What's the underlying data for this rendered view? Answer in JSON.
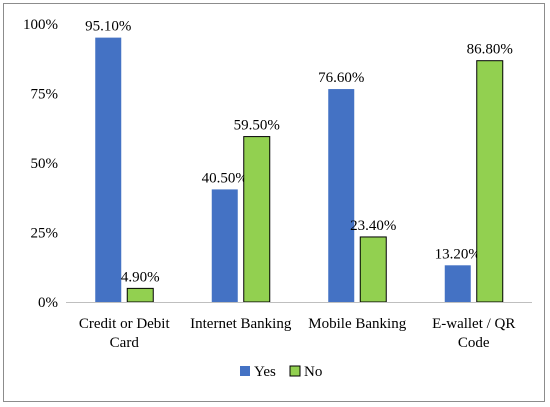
{
  "chart_data": {
    "type": "bar",
    "categories": [
      [
        "Credit or Debit",
        "Card"
      ],
      [
        "Internet Banking"
      ],
      [
        "Mobile Banking"
      ],
      [
        "E-wallet / QR",
        "Code"
      ]
    ],
    "series": [
      {
        "name": "Yes",
        "values": [
          95.1,
          40.5,
          76.6,
          13.2
        ],
        "labels": [
          "95.10%",
          "40.50%",
          "76.60%",
          "13.20%"
        ],
        "color": "#4472C4"
      },
      {
        "name": "No",
        "values": [
          4.9,
          59.5,
          23.4,
          86.8
        ],
        "labels": [
          "4.90%",
          "59.50%",
          "23.40%",
          "86.80%"
        ],
        "color": "#92D050"
      }
    ],
    "y_ticks": [
      {
        "value": 0,
        "label": "0%"
      },
      {
        "value": 25,
        "label": "25%"
      },
      {
        "value": 50,
        "label": "50%"
      },
      {
        "value": 75,
        "label": "75%"
      },
      {
        "value": 100,
        "label": "100%"
      }
    ],
    "ylim": [
      0,
      100
    ],
    "grid": false,
    "legend": "bottom-center",
    "axis_color": "#bfbfbf",
    "bar_outline": "#000000"
  }
}
